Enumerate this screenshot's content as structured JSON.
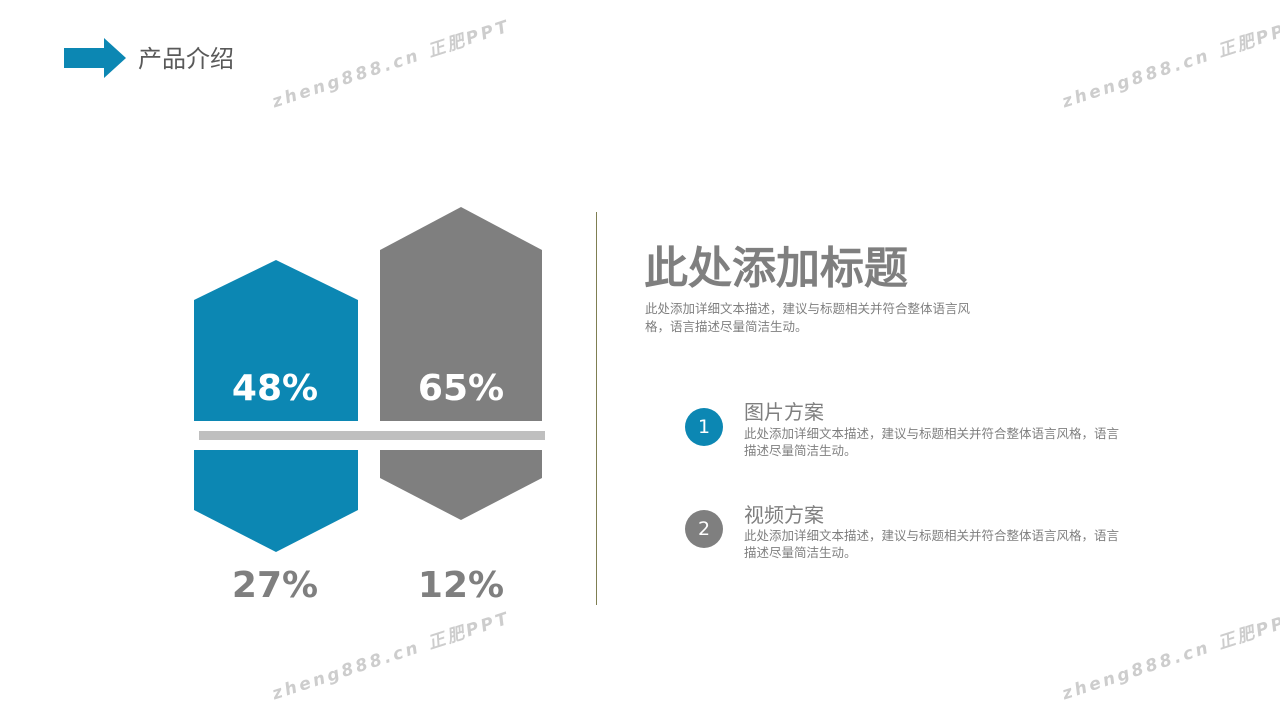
{
  "header": {
    "title": "产品介绍"
  },
  "watermark": {
    "text": "zheng888.cn 正肥PPT"
  },
  "colors": {
    "accent": "#0c87b3",
    "gray": "#7f7f7f",
    "bar": "#bfbfbf"
  },
  "stats": {
    "top_left": "48%",
    "top_right": "65%",
    "bottom_left": "27%",
    "bottom_right": "12%"
  },
  "main": {
    "title": "此处添加标题",
    "description": "此处添加详细文本描述，建议与标题相关并符合整体语言风格，语言描述尽量简洁生动。"
  },
  "items": [
    {
      "number": "1",
      "title": "图片方案",
      "description": "此处添加详细文本描述，建议与标题相关并符合整体语言风格，语言描述尽量简洁生动。"
    },
    {
      "number": "2",
      "title": "视频方案",
      "description": "此处添加详细文本描述，建议与标题相关并符合整体语言风格，语言描述尽量简洁生动。"
    }
  ]
}
